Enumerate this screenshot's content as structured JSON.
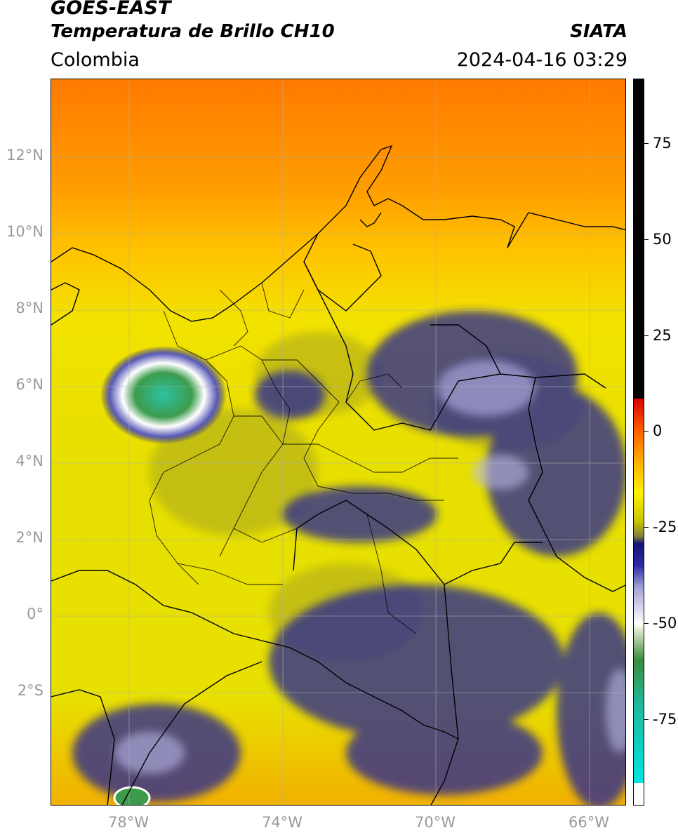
{
  "header": {
    "satellite": "GOES-EAST",
    "product": "Temperatura de Brillo CH10",
    "region": "Colombia",
    "agency": "SIATA",
    "datetime": "2024-04-16 03:29"
  },
  "map": {
    "lat_labels": [
      "12°N",
      "10°N",
      "8°N",
      "6°N",
      "4°N",
      "2°N",
      "0°",
      "2°S"
    ],
    "lon_labels": [
      "78°W",
      "74°W",
      "70°W",
      "66°W"
    ],
    "lon_range": [
      -80,
      -65
    ],
    "lat_range": [
      -5,
      14
    ]
  },
  "colorbar": {
    "tick_labels": [
      "75",
      "50",
      "25",
      "0",
      "-25",
      "-50",
      "-75"
    ],
    "range": [
      -95,
      90
    ]
  }
}
